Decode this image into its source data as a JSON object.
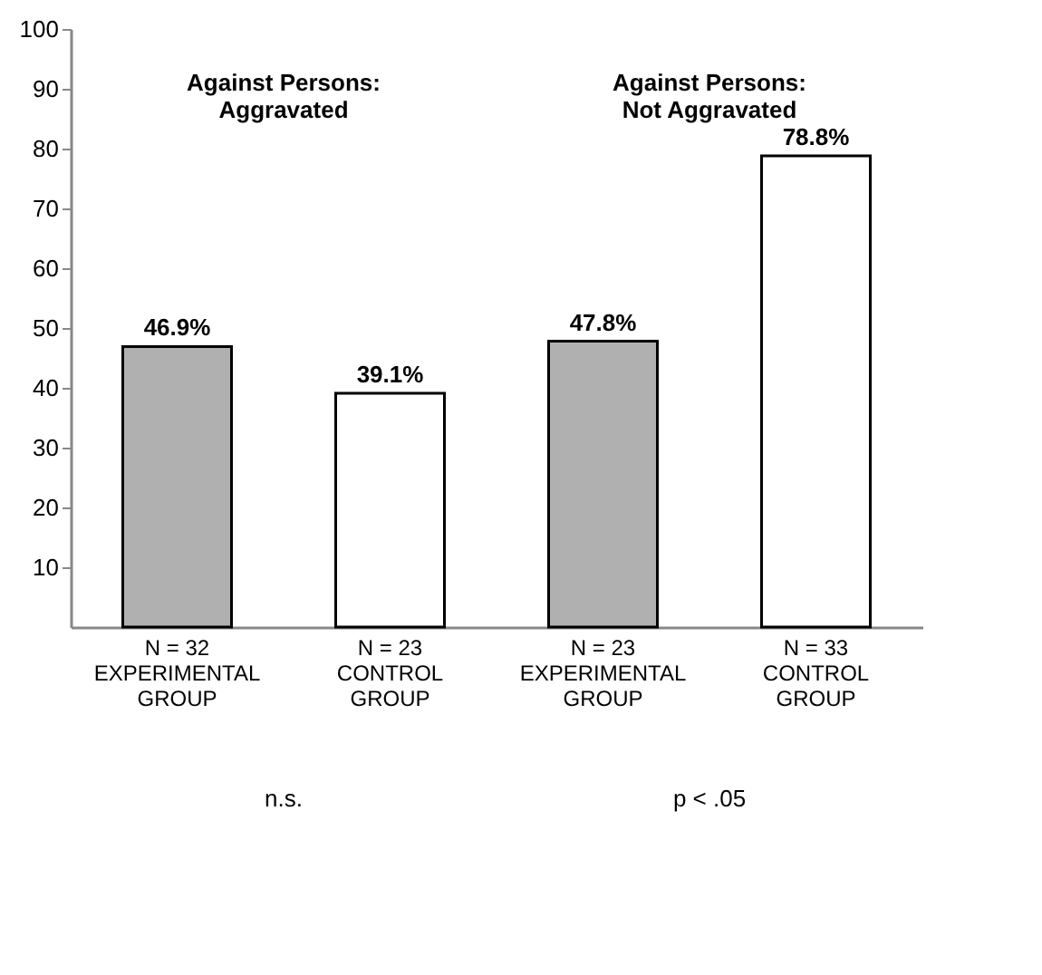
{
  "chart_data": {
    "type": "bar",
    "categories": [
      "N = 32\nEXPERIMENTAL\nGROUP",
      "N = 23\nCONTROL\nGROUP",
      "N = 23\nEXPERIMENTAL\nGROUP",
      "N = 33\nCONTROL\nGROUP"
    ],
    "values": [
      46.9,
      39.1,
      47.8,
      78.8
    ],
    "value_labels": [
      "46.9%",
      "39.1%",
      "47.8%",
      "78.8%"
    ],
    "colors": [
      "#b0b0b0",
      "#ffffff",
      "#b0b0b0",
      "#ffffff"
    ],
    "ylim": [
      0,
      100
    ],
    "yticks": [
      10,
      20,
      30,
      40,
      50,
      60,
      70,
      80,
      90,
      100
    ],
    "grid": false,
    "annotations": [
      "Against Persons:\nAggravated",
      "Against Persons:\nNot Aggravated",
      "n.s.",
      "p < .05"
    ]
  }
}
